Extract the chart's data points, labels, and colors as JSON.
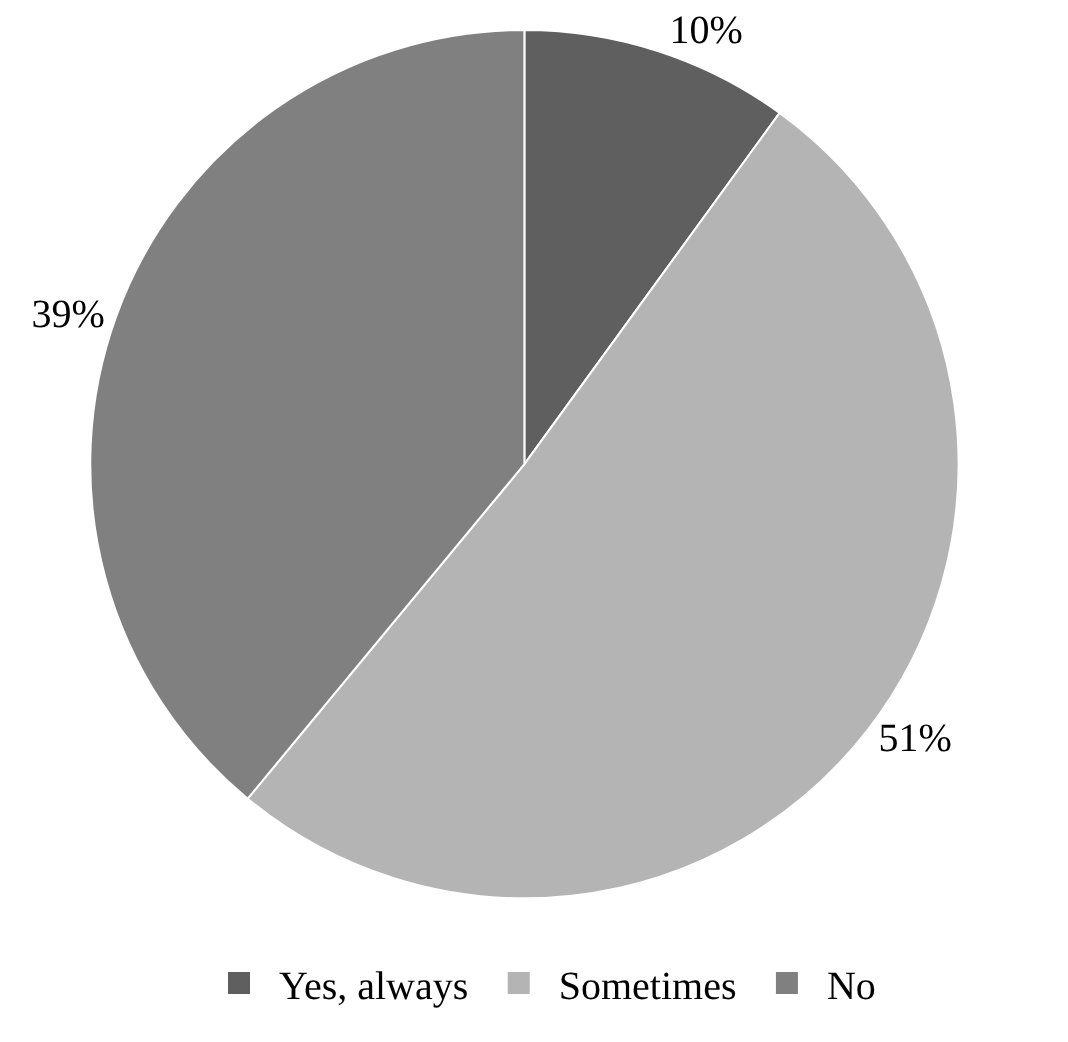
{
  "chart_data": {
    "type": "pie",
    "categories": [
      "Yes, always",
      "Sometimes",
      "No"
    ],
    "values": [
      10,
      51,
      39
    ],
    "colors": [
      "#5f5f5f",
      "#b4b4b4",
      "#808080"
    ],
    "value_labels": [
      "10%",
      "51%",
      "39%"
    ],
    "legend": "bottom"
  }
}
